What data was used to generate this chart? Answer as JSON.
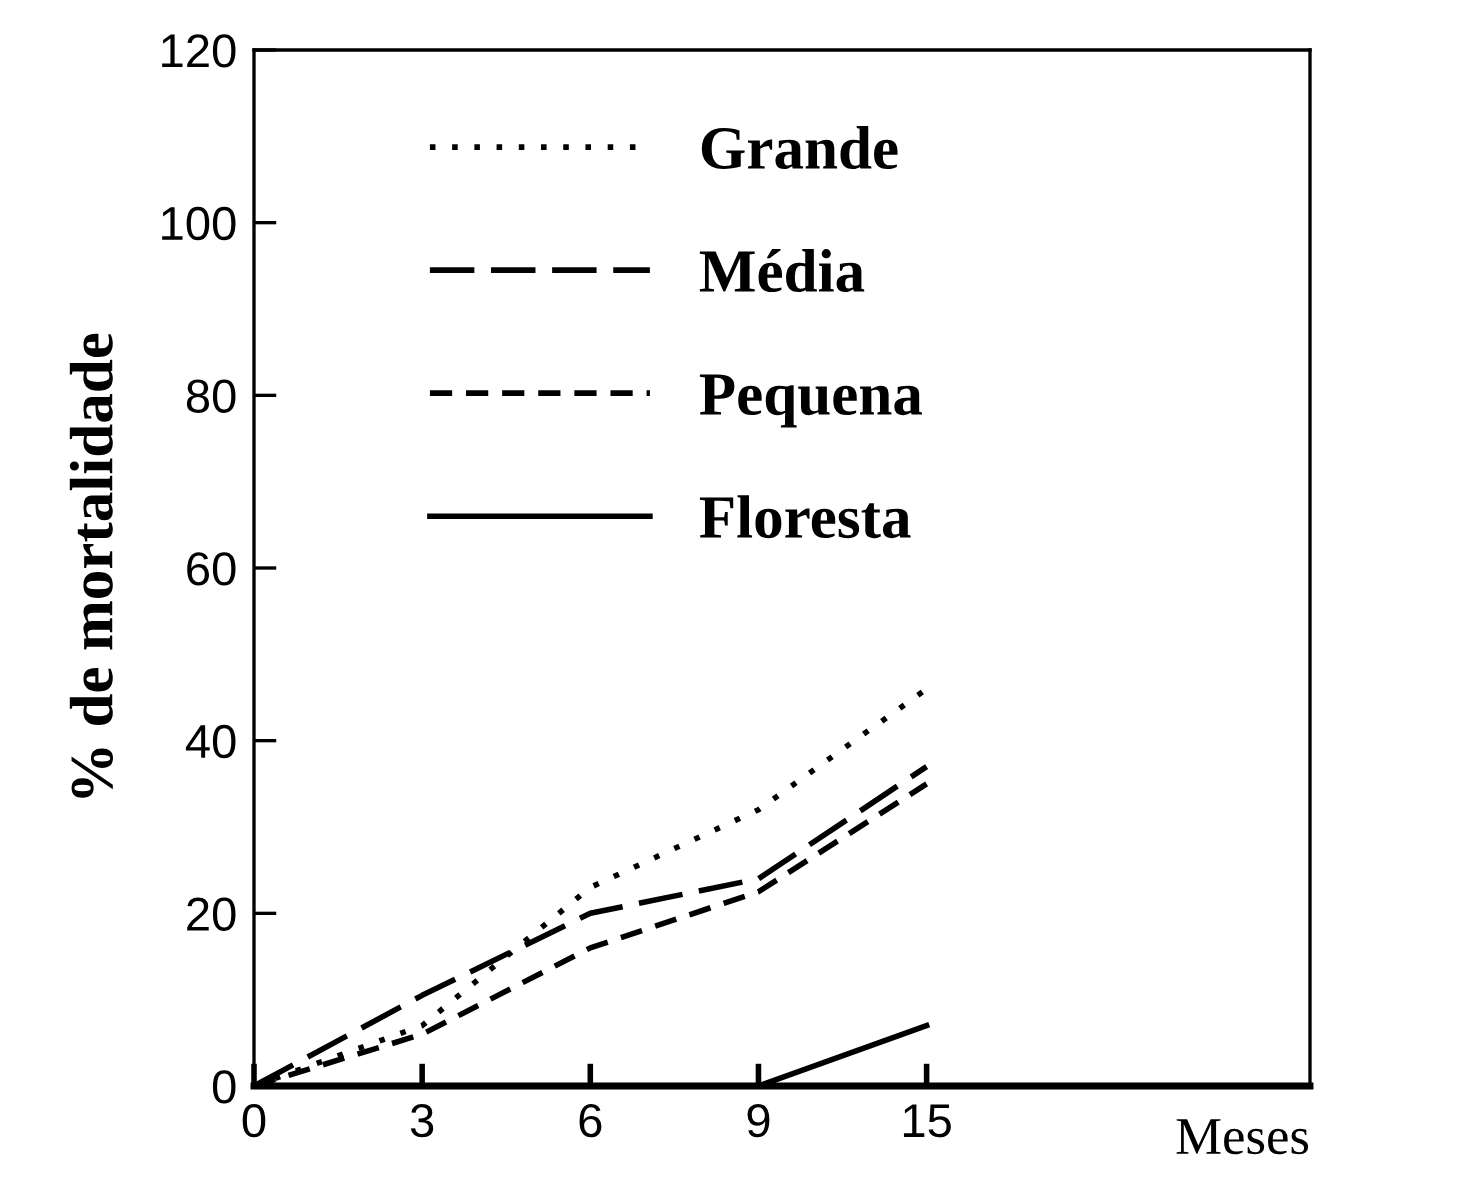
{
  "chart_data": {
    "type": "line",
    "xlabel": "Meses",
    "ylabel": "% de mortalidade",
    "categories": [
      "0",
      "3",
      "6",
      "9",
      "15"
    ],
    "series": [
      {
        "name": "Grande",
        "color": "#000000",
        "line_style": "dotted",
        "values": [
          0,
          7,
          23,
          32,
          46
        ]
      },
      {
        "name": "Média",
        "color": "#000000",
        "line_style": "dashed",
        "values": [
          0,
          10.5,
          20,
          24,
          37
        ]
      },
      {
        "name": "Pequena",
        "color": "#000000",
        "line_style": "dashed",
        "values": [
          0,
          6,
          16,
          22.5,
          35
        ]
      },
      {
        "name": "Floresta",
        "color": "#000000",
        "line_style": "solid",
        "values": [
          0,
          0,
          0,
          0,
          7
        ]
      }
    ],
    "ylim": [
      0,
      120
    ],
    "yticks": [
      0,
      20,
      40,
      60,
      80,
      100,
      120
    ],
    "legend": "top",
    "grid": false,
    "marker": "none"
  }
}
